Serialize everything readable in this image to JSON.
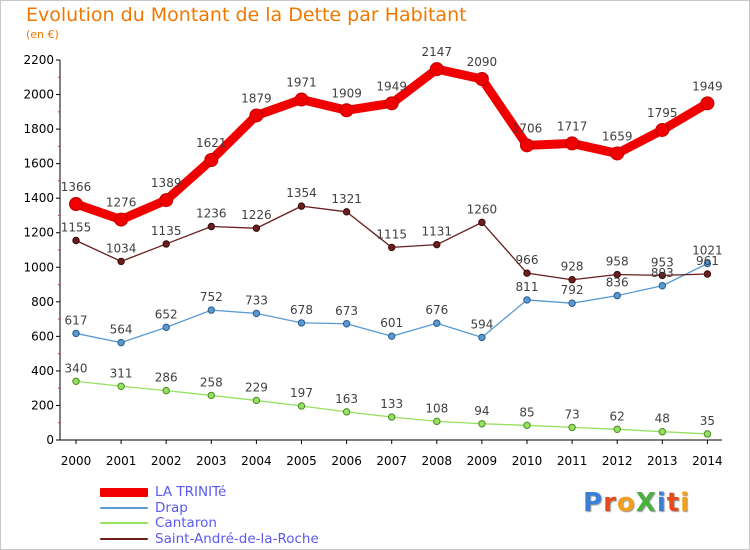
{
  "title": "Evolution du Montant de la Dette par Habitant",
  "subtitle": "(en €)",
  "logo": {
    "text": "ProXiti",
    "letters": [
      "P",
      "r",
      "o",
      "X",
      "i",
      "t",
      "i"
    ],
    "colors": [
      "#3a7fd8",
      "#e84a1a",
      "#f0a020",
      "#4cb040",
      "#3a7fd8",
      "#e84a1a",
      "#f0a020"
    ]
  },
  "chart_data": {
    "type": "line",
    "x": [
      "2000",
      "2001",
      "2002",
      "2003",
      "2004",
      "2005",
      "2006",
      "2007",
      "2008",
      "2009",
      "2010",
      "2011",
      "2012",
      "2013",
      "2014"
    ],
    "ylim": [
      0,
      2200
    ],
    "yticks": [
      0,
      200,
      400,
      600,
      800,
      1000,
      1200,
      1400,
      1600,
      1800,
      2000,
      2200
    ],
    "grid": false,
    "legend_position": "bottom-left",
    "series": [
      {
        "name": "LA TRINITé",
        "color": "#f00000",
        "values": [
          1366,
          1276,
          1389,
          1621,
          1879,
          1971,
          1909,
          1949,
          2147,
          2090,
          1706,
          1717,
          1659,
          1795,
          1949
        ],
        "labels": [
          "1366",
          "1276",
          "1389",
          "1621",
          "1879",
          "1971",
          "1909",
          "1949",
          "2147",
          "2090",
          "1706",
          "1717",
          "1659",
          "1795",
          "1949"
        ]
      },
      {
        "name": "Drap",
        "color": "#5a9ad2",
        "values": [
          617,
          564,
          652,
          752,
          733,
          678,
          673,
          601,
          676,
          594,
          811,
          792,
          836,
          893,
          1021
        ],
        "labels": [
          "617",
          "564",
          "652",
          "752",
          "733",
          "678",
          "673",
          "601",
          "676",
          "594",
          "811",
          "792",
          "836",
          "893",
          "1021"
        ]
      },
      {
        "name": "Cantaron",
        "color": "#96e060",
        "values": [
          340,
          311,
          286,
          258,
          229,
          197,
          163,
          133,
          108,
          94,
          85,
          73,
          62,
          48,
          35
        ],
        "labels": [
          "340",
          "311",
          "286",
          "258",
          "229",
          "197",
          "163",
          "133",
          "108",
          "94",
          "85",
          "73",
          "62",
          "48",
          "35"
        ]
      },
      {
        "name": "Saint-André-de-la-Roche",
        "color": "#6a1e1e",
        "values": [
          1155,
          1034,
          1135,
          1236,
          1226,
          1354,
          1321,
          1115,
          1131,
          1260,
          966,
          928,
          958,
          953,
          961
        ],
        "labels": [
          "1155",
          "1034",
          "1135",
          "1236",
          "1226",
          "1354",
          "1321",
          "1115",
          "1131",
          "1260",
          "966",
          "928",
          "958",
          "953",
          "961"
        ]
      }
    ]
  }
}
